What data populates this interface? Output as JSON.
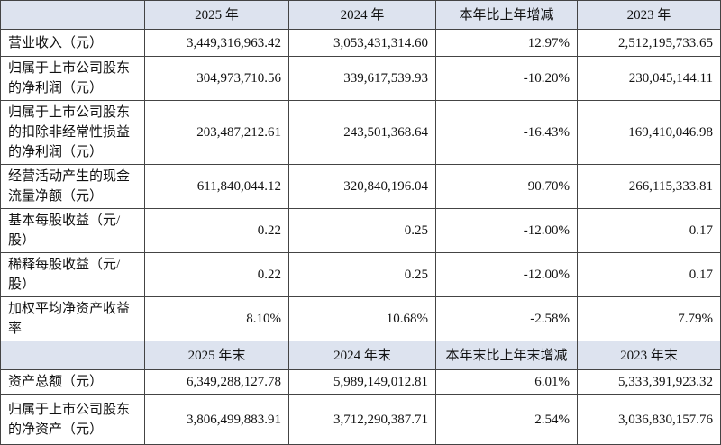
{
  "table": {
    "header": [
      "2025 年",
      "2024 年",
      "本年比上年增减",
      "2023 年"
    ],
    "rows": [
      [
        "营业收入（元）",
        "3,449,316,963.42",
        "3,053,431,314.60",
        "12.97%",
        "2,512,195,733.65"
      ],
      [
        "归属于上市公司股东的净利润（元）",
        "304,973,710.56",
        "339,617,539.93",
        "-10.20%",
        "230,045,144.11"
      ],
      [
        "归属于上市公司股东的扣除非经常性损益的净利润（元）",
        "203,487,212.61",
        "243,501,368.64",
        "-16.43%",
        "169,410,046.98"
      ],
      [
        "经营活动产生的现金流量净额（元）",
        "611,840,044.12",
        "320,840,196.04",
        "90.70%",
        "266,115,333.81"
      ],
      [
        "基本每股收益（元/股）",
        "0.22",
        "0.25",
        "-12.00%",
        "0.17"
      ],
      [
        "稀释每股收益（元/股）",
        "0.22",
        "0.25",
        "-12.00%",
        "0.17"
      ],
      [
        "加权平均净资产收益率",
        "8.10%",
        "10.68%",
        "-2.58%",
        "7.79%"
      ]
    ],
    "header2": [
      "2025 年末",
      "2024 年末",
      "本年末比上年末增减",
      "2023 年末"
    ],
    "rows2": [
      [
        "资产总额（元）",
        "6,349,288,127.78",
        "5,989,149,012.81",
        "6.01%",
        "5,333,391,923.32"
      ],
      [
        "归属于上市公司股东的净资产（元）",
        "3,806,499,883.91",
        "3,712,290,387.71",
        "2.54%",
        "3,036,830,157.76"
      ]
    ]
  }
}
